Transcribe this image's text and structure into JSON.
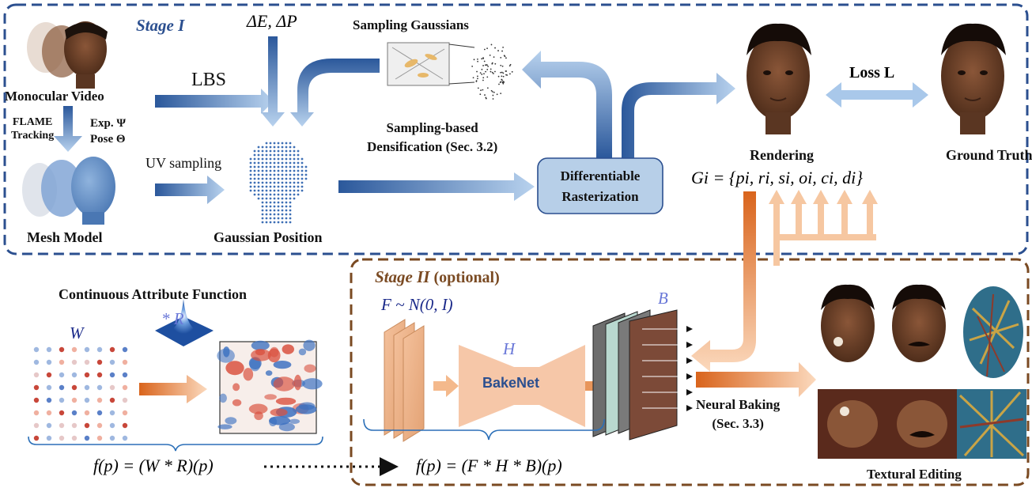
{
  "stage1": {
    "title": "Stage I"
  },
  "stage2": {
    "title": "Stage II",
    "suffix": "(optional)"
  },
  "labels": {
    "monocular_video": "Monocular Video",
    "flame_tracking_1": "FLAME",
    "flame_tracking_2": "Tracking",
    "exp": "Exp. Ψ",
    "pose": "Pose Θ",
    "mesh_model": "Mesh Model",
    "lbs": "LBS",
    "delta": "ΔE, ΔP",
    "uv_sampling": "UV sampling",
    "gaussian_position": "Gaussian Position",
    "sampling_gaussians": "Sampling Gaussians",
    "sampling_densification_1": "Sampling-based",
    "sampling_densification_2": "Densification (Sec. 3.2)",
    "diff_raster_1": "Differentiable",
    "diff_raster_2": "Rasterization",
    "rendering": "Rendering",
    "loss": "Loss L",
    "ground_truth": "Ground Truth",
    "gaussian_attrs": "Gi = {pi, ri, si, oi, ci, di}",
    "continuous_attr": "Continuous Attribute Function",
    "w_symbol": "W",
    "conv_r": "* R",
    "f_formula_1": "f(p) = (W * R)(p)",
    "noise_dist": "F ~ N(0, I)",
    "h_symbol": "H",
    "bakenet": "BakeNet",
    "b_symbol": "B",
    "f_formula_2": "f(p) = (F * H * B)(p)",
    "neural_baking_1": "Neural Baking",
    "neural_baking_2": "(Sec. 3.3)",
    "textural_editing": "Textural Editing"
  },
  "colors": {
    "stage1_border": "#2b4f8f",
    "stage2_border": "#7a4a22",
    "blue_arrow": "#2d5a9e",
    "light_blue_arrow": "#a9c8ea",
    "orange_arrow": "#e07a2e",
    "light_orange": "#f6c7a1",
    "rasterizer_fill": "#b7cfe8",
    "bakenet_fill": "#f6c7a8"
  }
}
